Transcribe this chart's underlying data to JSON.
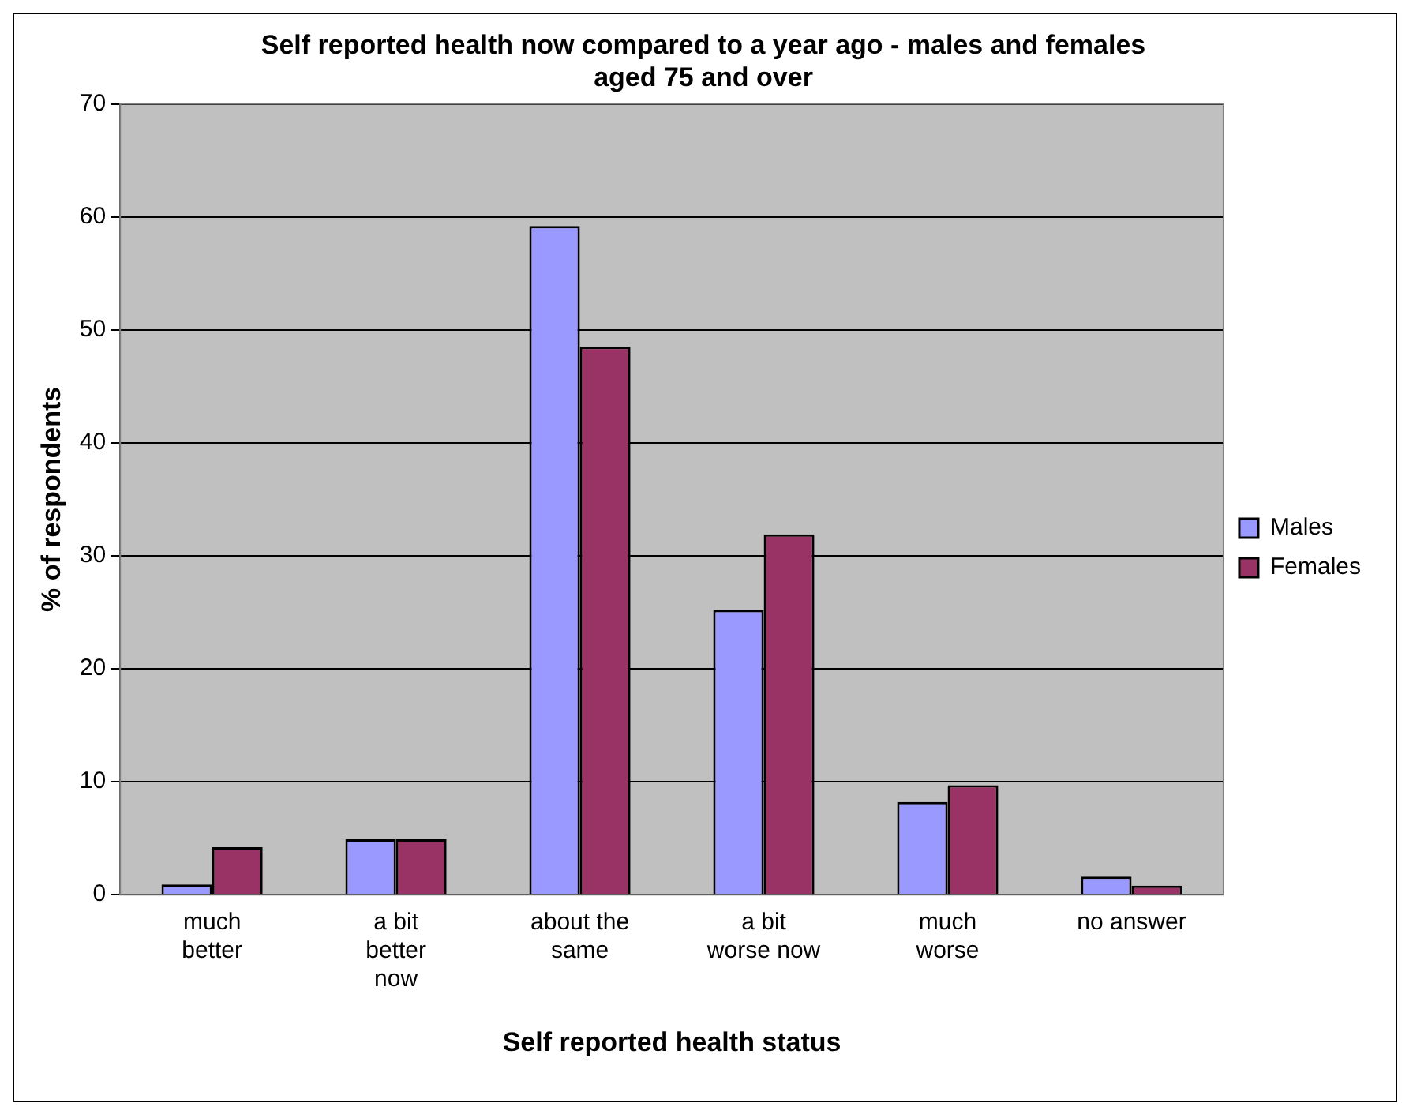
{
  "chart_data": {
    "type": "bar",
    "title": "Self reported health now compared to a year ago - males and females aged 75 and over",
    "xlabel": "Self reported health status",
    "ylabel": "% of respondents",
    "categories": [
      "much better",
      "a bit better now",
      "about the same",
      "a bit worse now",
      "much worse",
      "no answer"
    ],
    "series": [
      {
        "name": "Males",
        "color": "#9999ff",
        "values": [
          0.9,
          4.9,
          59.2,
          25.2,
          8.2,
          1.6
        ]
      },
      {
        "name": "Females",
        "color": "#993366",
        "values": [
          4.2,
          4.9,
          48.5,
          31.9,
          9.7,
          0.8
        ]
      }
    ],
    "ylim": [
      0,
      70
    ],
    "yticks": [
      0,
      10,
      20,
      30,
      40,
      50,
      60,
      70
    ],
    "grid": "y",
    "legend": "right"
  }
}
